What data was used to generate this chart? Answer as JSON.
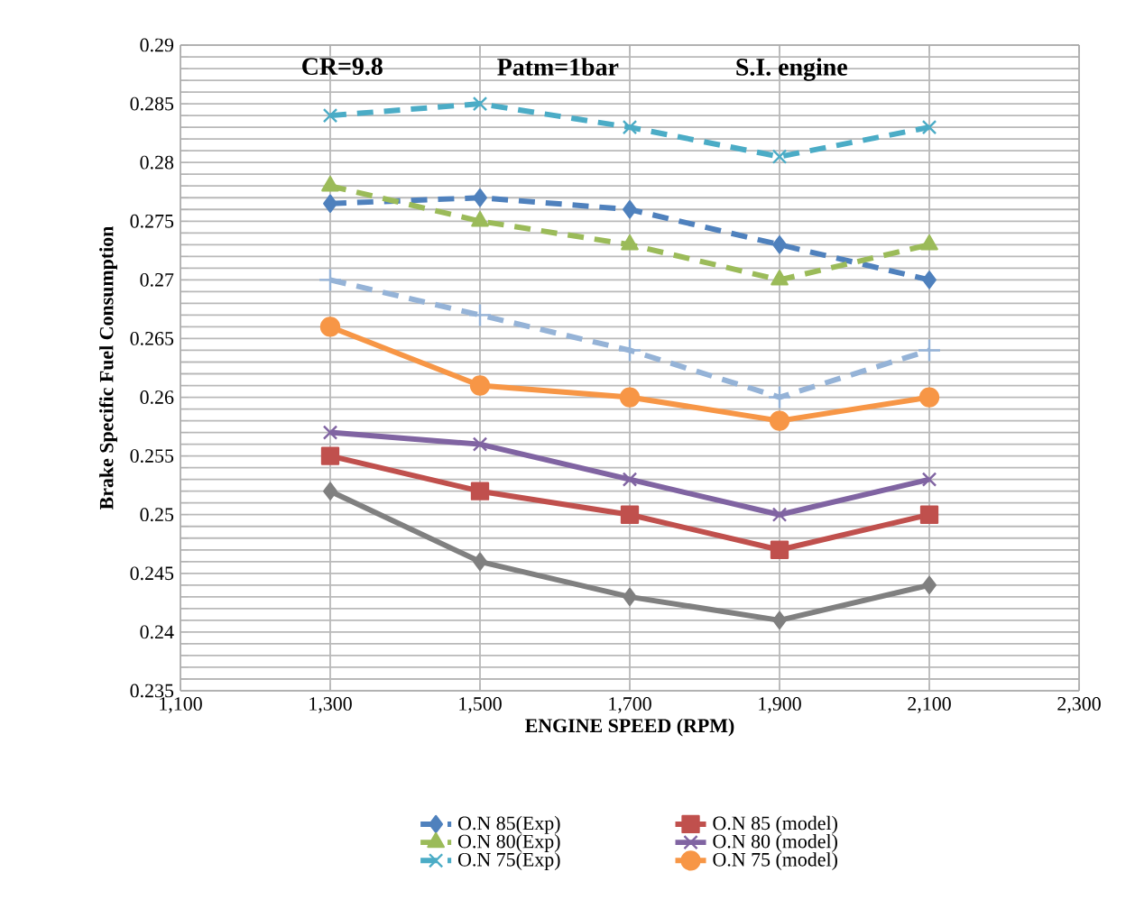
{
  "chart_data": {
    "type": "line",
    "annotations": [
      "CR=9.8",
      "Patm=1bar",
      "S.I. engine"
    ],
    "xlabel": "ENGINE SPEED (RPM)",
    "ylabel": "Brake Specific Fuel Consumption",
    "x": [
      1300,
      1500,
      1700,
      1900,
      2100
    ],
    "xlim": [
      1100,
      2300
    ],
    "xticks": [
      {
        "value": 1100,
        "label": "1,100"
      },
      {
        "value": 1300,
        "label": "1,300"
      },
      {
        "value": 1500,
        "label": "1,500"
      },
      {
        "value": 1700,
        "label": "1,700"
      },
      {
        "value": 1900,
        "label": "1,900"
      },
      {
        "value": 2100,
        "label": "2,100"
      },
      {
        "value": 2300,
        "label": "2,300"
      }
    ],
    "ylim": [
      0.235,
      0.29
    ],
    "yticks": [
      0.235,
      {
        "value": 0.236,
        "label": null
      },
      {
        "value": 0.237,
        "label": null
      },
      {
        "value": 0.238,
        "label": null
      },
      {
        "value": 0.239,
        "label": null
      },
      0.24,
      {
        "value": 0.241,
        "label": null
      },
      {
        "value": 0.242,
        "label": null
      },
      {
        "value": 0.243,
        "label": null
      },
      {
        "value": 0.244,
        "label": null
      },
      0.245,
      {
        "value": 0.246,
        "label": null
      },
      {
        "value": 0.247,
        "label": null
      },
      {
        "value": 0.248,
        "label": null
      },
      {
        "value": 0.249,
        "label": null
      },
      0.25,
      {
        "value": 0.251,
        "label": null
      },
      {
        "value": 0.252,
        "label": null
      },
      {
        "value": 0.253,
        "label": null
      },
      {
        "value": 0.254,
        "label": null
      },
      0.255,
      {
        "value": 0.256,
        "label": null
      },
      {
        "value": 0.257,
        "label": null
      },
      {
        "value": 0.258,
        "label": null
      },
      {
        "value": 0.259,
        "label": null
      },
      0.26,
      {
        "value": 0.261,
        "label": null
      },
      {
        "value": 0.262,
        "label": null
      },
      {
        "value": 0.263,
        "label": null
      },
      {
        "value": 0.264,
        "label": null
      },
      0.265,
      {
        "value": 0.266,
        "label": null
      },
      {
        "value": 0.267,
        "label": null
      },
      {
        "value": 0.268,
        "label": null
      },
      {
        "value": 0.269,
        "label": null
      },
      0.27,
      {
        "value": 0.271,
        "label": null
      },
      {
        "value": 0.272,
        "label": null
      },
      {
        "value": 0.273,
        "label": null
      },
      {
        "value": 0.274,
        "label": null
      },
      0.275,
      {
        "value": 0.276,
        "label": null
      },
      {
        "value": 0.277,
        "label": null
      },
      {
        "value": 0.278,
        "label": null
      },
      {
        "value": 0.279,
        "label": null
      },
      0.28,
      {
        "value": 0.281,
        "label": null
      },
      {
        "value": 0.282,
        "label": null
      },
      {
        "value": 0.283,
        "label": null
      },
      {
        "value": 0.284,
        "label": null
      },
      0.285,
      {
        "value": 0.286,
        "label": null
      },
      {
        "value": 0.287,
        "label": null
      },
      {
        "value": 0.288,
        "label": null
      },
      {
        "value": 0.289,
        "label": null
      },
      0.29
    ],
    "grid": true,
    "legend": "bottom",
    "series": [
      {
        "name": "O.N 85(Exp)",
        "color": "#4f81bd",
        "line_style": "dashed",
        "marker": "diamond",
        "values": [
          0.2765,
          0.277,
          0.276,
          0.273,
          0.27
        ]
      },
      {
        "name": "O.N 85 (model)",
        "color": "#c0504d",
        "line_style": "solid",
        "marker": "square",
        "values": [
          0.255,
          0.252,
          0.25,
          0.247,
          0.25
        ]
      },
      {
        "name": "O.N 80(Exp)",
        "color": "#9bbb59",
        "line_style": "dashed",
        "marker": "triangle",
        "values": [
          0.278,
          0.275,
          0.273,
          0.27,
          0.273
        ]
      },
      {
        "name": "O.N 80 (model)",
        "color": "#8064a2",
        "line_style": "solid",
        "marker": "cross",
        "values": [
          0.257,
          0.256,
          0.253,
          0.25,
          0.253
        ]
      },
      {
        "name": "O.N 75(Exp)",
        "color": "#4bacc6",
        "line_style": "dashed",
        "marker": "cross",
        "values": [
          0.284,
          0.285,
          0.283,
          0.2805,
          0.283
        ]
      },
      {
        "name": "O.N 75 (model)",
        "color": "#f79646",
        "line_style": "solid",
        "marker": "circle",
        "values": [
          0.266,
          0.261,
          0.26,
          0.258,
          0.26
        ]
      },
      {
        "color": "#95b3d7",
        "line_style": "dashed",
        "marker": "plus",
        "values": [
          0.27,
          0.267,
          0.264,
          0.26,
          0.264
        ]
      },
      {
        "color": "#808080",
        "line_style": "solid",
        "marker": "diamond",
        "values": [
          0.252,
          0.246,
          0.243,
          0.241,
          0.244
        ]
      }
    ]
  }
}
